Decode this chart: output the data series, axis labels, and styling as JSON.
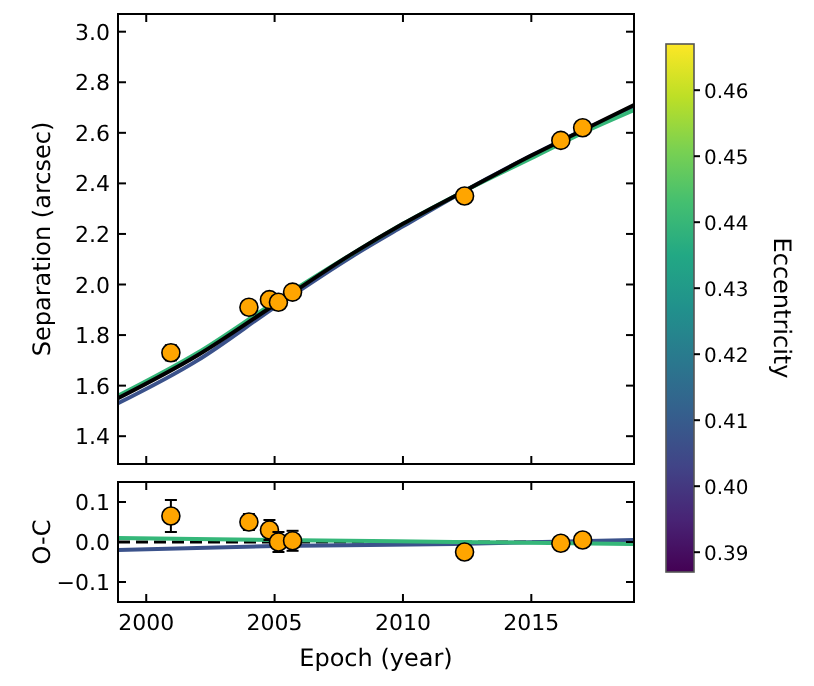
{
  "chart_data": [
    {
      "type": "line",
      "ylabel": "Separation (arcsec)",
      "clabel": "Eccentricity",
      "clim": [
        0.387,
        0.467
      ],
      "cticks": [
        0.39,
        {
          "value": 0.4,
          "label": "0.40"
        },
        0.41,
        0.42,
        0.43,
        0.44,
        0.45,
        0.46
      ],
      "xlim": [
        1998.9,
        2019
      ],
      "xticks": [
        2000,
        2005,
        2010,
        2015
      ],
      "ylim": [
        1.29,
        3.07
      ],
      "yticks": [
        1.4,
        1.6,
        1.8,
        {
          "value": 2,
          "label": "2.0"
        },
        2.2,
        2.4,
        2.6,
        2.8,
        {
          "value": 3,
          "label": "3.0"
        }
      ],
      "tick_labels": "y",
      "grid": false,
      "series": [
        {
          "color": "#3b528b",
          "line_style": "solid",
          "x": [
            1998.9,
            2002,
            2005,
            2008,
            2010,
            2012.4,
            2015,
            2017,
            2019
          ],
          "values": [
            1.53,
            1.7,
            1.91,
            2.11,
            2.23,
            2.37,
            2.51,
            2.61,
            2.7
          ]
        },
        {
          "color": "#35b779",
          "line_style": "solid",
          "x": [
            1998.9,
            2002,
            2005,
            2008,
            2010,
            2012.4,
            2015,
            2017,
            2019
          ],
          "values": [
            1.56,
            1.73,
            1.93,
            2.12,
            2.24,
            2.37,
            2.5,
            2.6,
            2.69
          ]
        },
        {
          "color": "#000000",
          "line_style": "solid",
          "x": [
            1998.9,
            2002,
            2005,
            2008,
            2010,
            2012.4,
            2015,
            2017,
            2019
          ],
          "values": [
            1.55,
            1.72,
            1.92,
            2.12,
            2.24,
            2.37,
            2.51,
            2.61,
            2.71
          ]
        },
        {
          "type": "scatter",
          "color": "#ffa500",
          "marker": "circle",
          "x": [
            2000.96,
            2004.0,
            2004.8,
            2005.15,
            2005.7,
            2012.4,
            2016.15,
            2017.0
          ],
          "values": [
            1.73,
            1.91,
            1.94,
            1.93,
            1.97,
            2.35,
            2.57,
            2.62
          ],
          "errors": [
            0.03,
            0.02,
            0.015,
            0.015,
            0.015,
            0.01,
            0.01,
            0.01
          ]
        }
      ]
    },
    {
      "type": "line",
      "xlabel": "Epoch (year)",
      "ylabel": "O-C",
      "xlim": [
        1998.9,
        2019
      ],
      "xticks": [
        2000,
        2005,
        2010,
        2015
      ],
      "ylim": [
        -0.15,
        0.15
      ],
      "yticks": [
        {
          "value": -0.1,
          "label": "−0.1"
        },
        {
          "value": 0,
          "label": "0.0"
        },
        0.1
      ],
      "grid": false,
      "ref_lines": [
        {
          "axis": "y",
          "value": 0,
          "color": "#000000",
          "line_style": "dashed"
        }
      ],
      "series": [
        {
          "color": "#3b528b",
          "line_style": "solid",
          "x": [
            1998.9,
            2005,
            2012,
            2019
          ],
          "values": [
            -0.02,
            -0.01,
            -0.005,
            0.005
          ]
        },
        {
          "color": "#35b779",
          "line_style": "solid",
          "x": [
            1998.9,
            2005,
            2012,
            2019
          ],
          "values": [
            0.01,
            0.005,
            0.0,
            -0.005
          ]
        },
        {
          "type": "scatter",
          "color": "#ffa500",
          "marker": "circle",
          "x": [
            2000.96,
            2004.0,
            2004.8,
            2005.15,
            2005.7,
            2012.4,
            2016.15,
            2017.0
          ],
          "values": [
            0.065,
            0.05,
            0.03,
            0.0,
            0.003,
            -0.025,
            -0.003,
            0.005
          ],
          "errors": [
            0.04,
            0.02,
            0.025,
            0.025,
            0.025,
            null,
            null,
            null
          ]
        }
      ]
    }
  ]
}
